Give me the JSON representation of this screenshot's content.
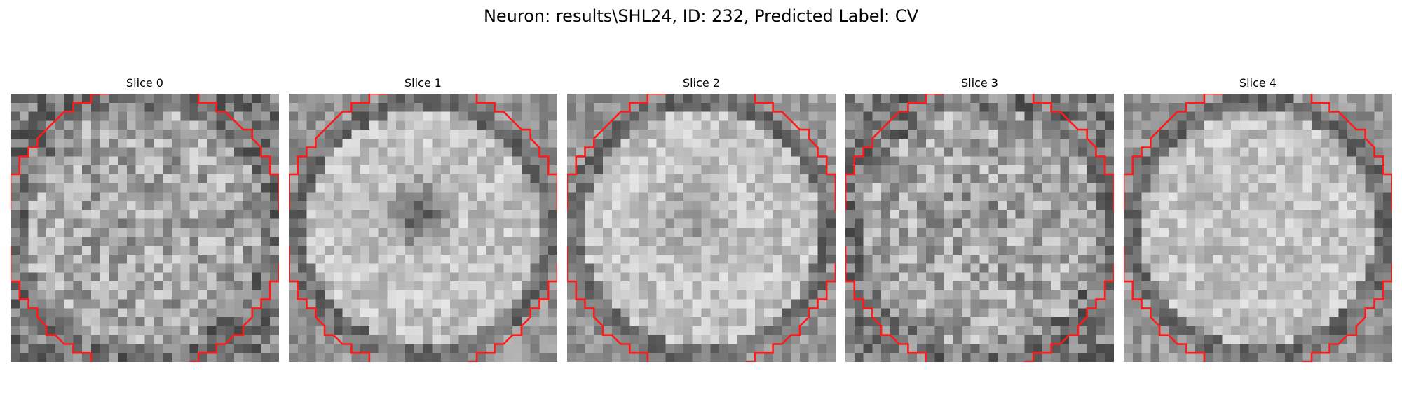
{
  "figure": {
    "title": "Neuron: results\\SHL24, ID: 232, Predicted Label: CV"
  },
  "colors": {
    "contour": "#ff1a1a",
    "background": "#ffffff"
  },
  "slices": [
    {
      "title": "Slice 0",
      "seed": 11,
      "pattern": "speckle",
      "darkHole": 0.0
    },
    {
      "title": "Slice 1",
      "seed": 23,
      "pattern": "ring",
      "darkHole": 0.95
    },
    {
      "title": "Slice 2",
      "seed": 37,
      "pattern": "ring",
      "darkHole": 0.45
    },
    {
      "title": "Slice 3",
      "seed": 41,
      "pattern": "speckle",
      "darkHole": 0.15
    },
    {
      "title": "Slice 4",
      "seed": 59,
      "pattern": "ring",
      "darkHole": 0.0
    }
  ]
}
